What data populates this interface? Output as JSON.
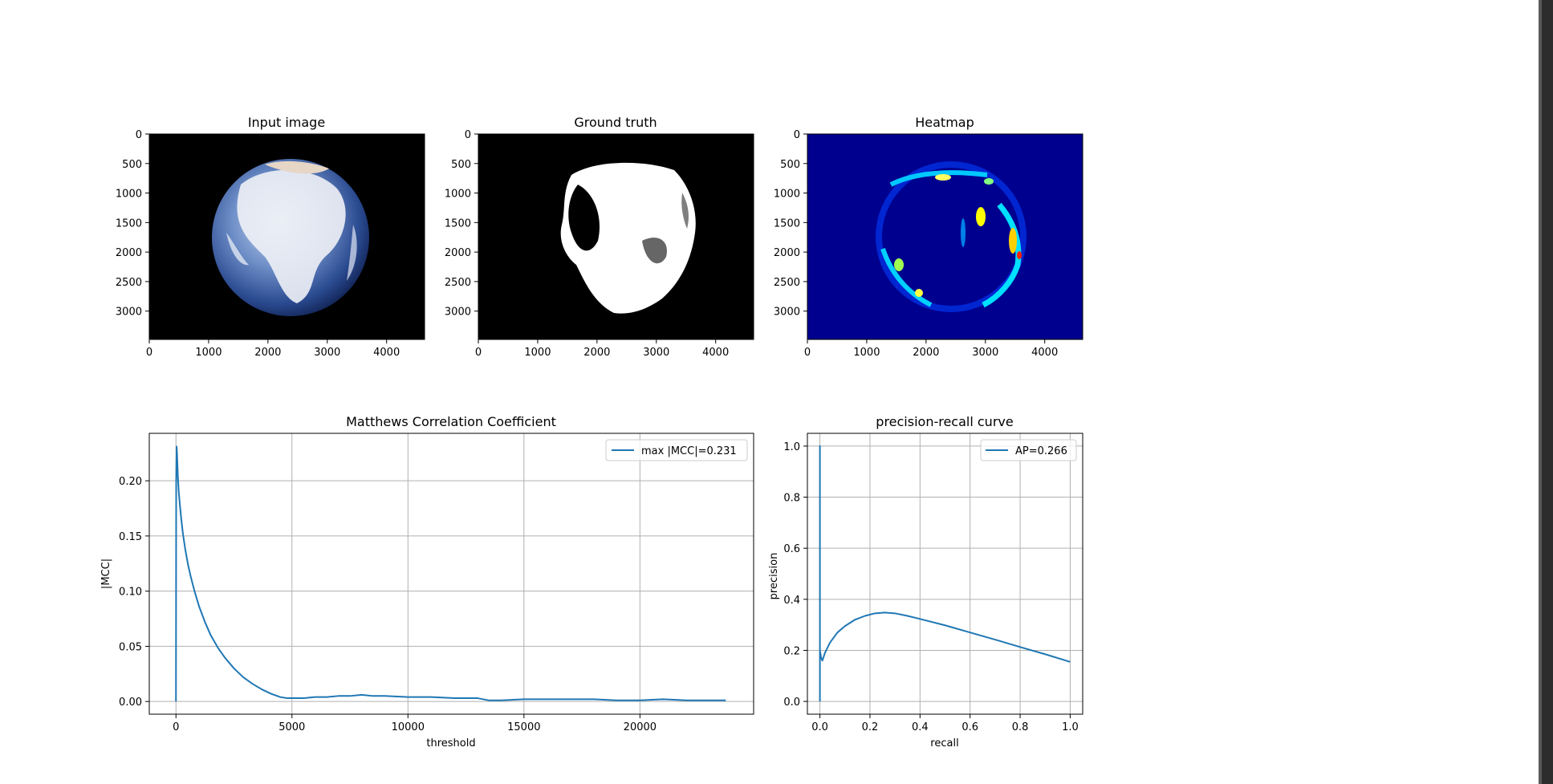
{
  "panels": {
    "input": {
      "title": "Input image"
    },
    "gt": {
      "title": "Ground truth"
    },
    "heat": {
      "title": "Heatmap"
    },
    "image_axes": {
      "xticks": [
        0,
        1000,
        2000,
        3000,
        4000
      ],
      "yticks": [
        0,
        500,
        1000,
        1500,
        2000,
        2500,
        3000
      ],
      "xlim": [
        0,
        4640
      ],
      "ylim": [
        0,
        3480
      ]
    }
  },
  "colors": {
    "line": "#1f77b4",
    "grid": "#b0b0b0",
    "axis": "#000000",
    "heat_bg": "#00008f",
    "space": "#000000"
  },
  "chart_data": [
    {
      "type": "line",
      "title": "Matthews Correlation Coefficient",
      "xlabel": "threshold",
      "ylabel": "|MCC|",
      "xlim": [
        -1150,
        24900
      ],
      "ylim": [
        -0.0115,
        0.243
      ],
      "xticks": [
        0,
        5000,
        10000,
        15000,
        20000
      ],
      "yticks": [
        0.0,
        0.05,
        0.1,
        0.15,
        0.2
      ],
      "ytick_labels": [
        "0.00",
        "0.05",
        "0.10",
        "0.15",
        "0.20"
      ],
      "grid": true,
      "legend": "upper right",
      "series": [
        {
          "name": "max |MCC|=0.231",
          "x": [
            0,
            10,
            30,
            50,
            80,
            120,
            170,
            230,
            300,
            400,
            520,
            650,
            800,
            1000,
            1250,
            1500,
            1800,
            2100,
            2500,
            2900,
            3300,
            3700,
            4100,
            4500,
            4800,
            5000,
            5500,
            6000,
            6500,
            7000,
            7500,
            8000,
            8500,
            9000,
            10000,
            11000,
            12000,
            13000,
            13500,
            14000,
            15000,
            16000,
            17000,
            18000,
            19000,
            19500,
            20000,
            21000,
            22000,
            23000,
            23700
          ],
          "y": [
            0.0,
            0.2,
            0.231,
            0.222,
            0.205,
            0.19,
            0.178,
            0.165,
            0.152,
            0.138,
            0.124,
            0.112,
            0.1,
            0.086,
            0.072,
            0.06,
            0.049,
            0.04,
            0.03,
            0.022,
            0.016,
            0.011,
            0.007,
            0.004,
            0.003,
            0.003,
            0.003,
            0.004,
            0.004,
            0.005,
            0.005,
            0.006,
            0.005,
            0.005,
            0.004,
            0.004,
            0.003,
            0.003,
            0.001,
            0.001,
            0.002,
            0.002,
            0.002,
            0.002,
            0.001,
            0.001,
            0.001,
            0.002,
            0.001,
            0.001,
            0.001
          ]
        }
      ]
    },
    {
      "type": "line",
      "title": "precision-recall curve",
      "xlabel": "recall",
      "ylabel": "precision",
      "xlim": [
        -0.05,
        1.05
      ],
      "ylim": [
        -0.05,
        1.05
      ],
      "xticks": [
        0.0,
        0.2,
        0.4,
        0.6,
        0.8,
        1.0
      ],
      "yticks": [
        0.0,
        0.2,
        0.4,
        0.6,
        0.8,
        1.0
      ],
      "tick_labels": [
        "0.0",
        "0.2",
        "0.4",
        "0.6",
        "0.8",
        "1.0"
      ],
      "grid": true,
      "legend": "upper right",
      "series": [
        {
          "name": "AP=0.266",
          "x": [
            0.0,
            0.0,
            0.0,
            0.005,
            0.01,
            0.015,
            0.02,
            0.04,
            0.07,
            0.1,
            0.14,
            0.18,
            0.22,
            0.26,
            0.3,
            0.35,
            0.4,
            0.5,
            0.6,
            0.7,
            0.8,
            0.9,
            1.0
          ],
          "y": [
            0.0,
            1.0,
            0.2,
            0.17,
            0.16,
            0.175,
            0.19,
            0.23,
            0.27,
            0.295,
            0.32,
            0.335,
            0.345,
            0.348,
            0.345,
            0.335,
            0.323,
            0.298,
            0.27,
            0.242,
            0.213,
            0.185,
            0.155
          ]
        }
      ]
    }
  ]
}
